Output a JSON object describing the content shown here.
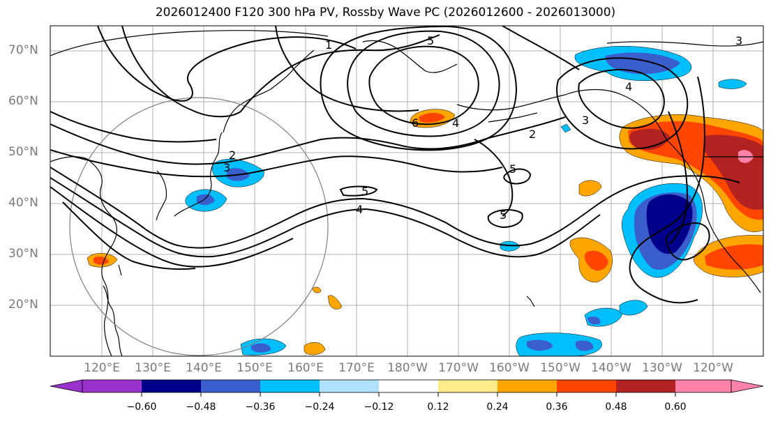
{
  "title": "2026012400 F120 300 hPa PV, Rossby Wave PC (2026012600 - 2026013000)",
  "lat_labels": [
    "70°N",
    "60°N",
    "50°N",
    "40°N",
    "30°N",
    "20°N"
  ],
  "lon_labels": [
    "120°E",
    "130°E",
    "140°E",
    "150°E",
    "160°E",
    "170°E",
    "180°W",
    "170°W",
    "160°W",
    "150°W",
    "140°W",
    "130°W",
    "120°W"
  ],
  "contour_labels": [
    "1",
    "2",
    "3",
    "4",
    "5",
    "6"
  ],
  "colorbar": {
    "tick_labels": [
      "−0.60",
      "−0.48",
      "−0.36",
      "−0.24",
      "−0.12",
      "0.12",
      "0.24",
      "0.36",
      "0.48",
      "0.60"
    ],
    "colors": [
      "#9932cc",
      "#00008b",
      "#3a5fcd",
      "#00bfff",
      "#b0e2ff",
      "#ffffff",
      "#ffec8b",
      "#ffa500",
      "#ff4500",
      "#b22222",
      "#ff82ab"
    ]
  }
}
